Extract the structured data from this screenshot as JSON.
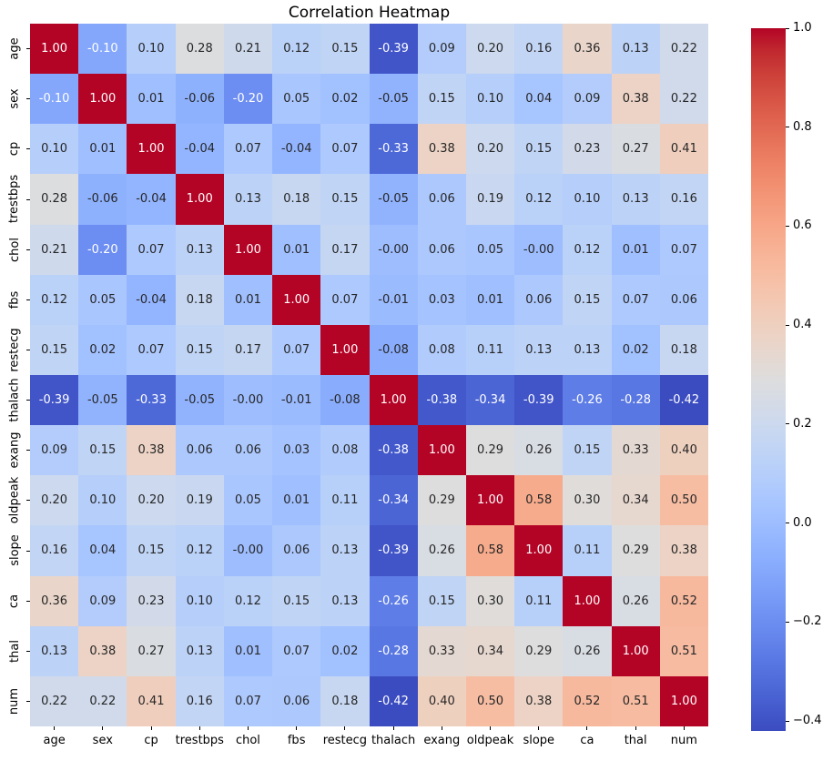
{
  "chart_data": {
    "type": "heatmap",
    "title": "Correlation Heatmap",
    "labels": [
      "age",
      "sex",
      "cp",
      "trestbps",
      "chol",
      "fbs",
      "restecg",
      "thalach",
      "exang",
      "oldpeak",
      "slope",
      "ca",
      "thal",
      "num"
    ],
    "matrix": [
      [
        "1.00",
        "-0.10",
        "0.10",
        "0.28",
        "0.21",
        "0.12",
        "0.15",
        "-0.39",
        "0.09",
        "0.20",
        "0.16",
        "0.36",
        "0.13",
        "0.22"
      ],
      [
        "-0.10",
        "1.00",
        "0.01",
        "-0.06",
        "-0.20",
        "0.05",
        "0.02",
        "-0.05",
        "0.15",
        "0.10",
        "0.04",
        "0.09",
        "0.38",
        "0.22"
      ],
      [
        "0.10",
        "0.01",
        "1.00",
        "-0.04",
        "0.07",
        "-0.04",
        "0.07",
        "-0.33",
        "0.38",
        "0.20",
        "0.15",
        "0.23",
        "0.27",
        "0.41"
      ],
      [
        "0.28",
        "-0.06",
        "-0.04",
        "1.00",
        "0.13",
        "0.18",
        "0.15",
        "-0.05",
        "0.06",
        "0.19",
        "0.12",
        "0.10",
        "0.13",
        "0.16"
      ],
      [
        "0.21",
        "-0.20",
        "0.07",
        "0.13",
        "1.00",
        "0.01",
        "0.17",
        "-0.00",
        "0.06",
        "0.05",
        "-0.00",
        "0.12",
        "0.01",
        "0.07"
      ],
      [
        "0.12",
        "0.05",
        "-0.04",
        "0.18",
        "0.01",
        "1.00",
        "0.07",
        "-0.01",
        "0.03",
        "0.01",
        "0.06",
        "0.15",
        "0.07",
        "0.06"
      ],
      [
        "0.15",
        "0.02",
        "0.07",
        "0.15",
        "0.17",
        "0.07",
        "1.00",
        "-0.08",
        "0.08",
        "0.11",
        "0.13",
        "0.13",
        "0.02",
        "0.18"
      ],
      [
        "-0.39",
        "-0.05",
        "-0.33",
        "-0.05",
        "-0.00",
        "-0.01",
        "-0.08",
        "1.00",
        "-0.38",
        "-0.34",
        "-0.39",
        "-0.26",
        "-0.28",
        "-0.42"
      ],
      [
        "0.09",
        "0.15",
        "0.38",
        "0.06",
        "0.06",
        "0.03",
        "0.08",
        "-0.38",
        "1.00",
        "0.29",
        "0.26",
        "0.15",
        "0.33",
        "0.40"
      ],
      [
        "0.20",
        "0.10",
        "0.20",
        "0.19",
        "0.05",
        "0.01",
        "0.11",
        "-0.34",
        "0.29",
        "1.00",
        "0.58",
        "0.30",
        "0.34",
        "0.50"
      ],
      [
        "0.16",
        "0.04",
        "0.15",
        "0.12",
        "-0.00",
        "0.06",
        "0.13",
        "-0.39",
        "0.26",
        "0.58",
        "1.00",
        "0.11",
        "0.29",
        "0.38"
      ],
      [
        "0.36",
        "0.09",
        "0.23",
        "0.10",
        "0.12",
        "0.15",
        "0.13",
        "-0.26",
        "0.15",
        "0.30",
        "0.11",
        "1.00",
        "0.26",
        "0.52"
      ],
      [
        "0.13",
        "0.38",
        "0.27",
        "0.13",
        "0.01",
        "0.07",
        "0.02",
        "-0.28",
        "0.33",
        "0.34",
        "0.29",
        "0.26",
        "1.00",
        "0.51"
      ],
      [
        "0.22",
        "0.22",
        "0.41",
        "0.16",
        "0.07",
        "0.06",
        "0.18",
        "-0.42",
        "0.40",
        "0.50",
        "0.38",
        "0.52",
        "0.51",
        "1.00"
      ]
    ],
    "colormap": "coolwarm",
    "vmin": -0.42,
    "vmax": 1.0,
    "colorbar_position": "right",
    "colorbar_ticks": [
      {
        "label": "1.0",
        "value": 1.0
      },
      {
        "label": "0.8",
        "value": 0.8
      },
      {
        "label": "0.6",
        "value": 0.6
      },
      {
        "label": "0.4",
        "value": 0.4
      },
      {
        "label": "0.2",
        "value": 0.2
      },
      {
        "label": "0.0",
        "value": 0.0
      },
      {
        "label": "−0.2",
        "value": -0.2
      },
      {
        "label": "−0.4",
        "value": -0.4
      }
    ],
    "annotation_colors": {
      "dark": "#262626",
      "light": "#ffffff"
    },
    "background": "#ffffff",
    "grid": false
  }
}
